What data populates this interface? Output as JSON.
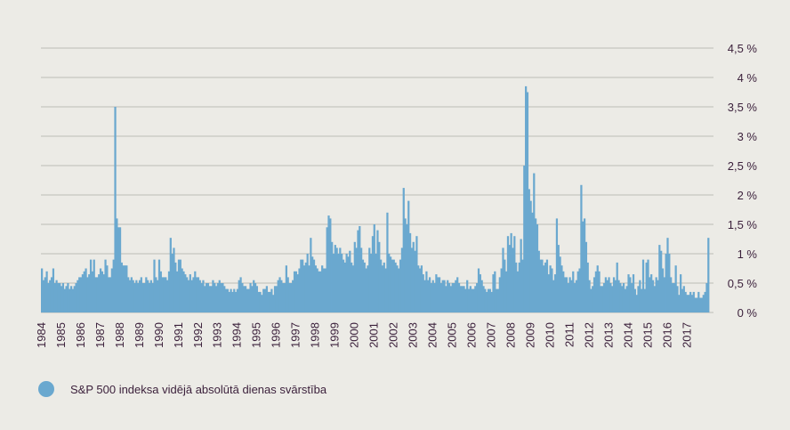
{
  "chart_data": {
    "type": "bar",
    "color": "#6aa8cf",
    "legend": "S&P 500 indeksa vidējā absolūtā dienas svārstība",
    "ylim": [
      0,
      4.5
    ],
    "yticks": [
      {
        "value": 0,
        "label": "0 %"
      },
      {
        "value": 0.5,
        "label": "0,5 %"
      },
      {
        "value": 1,
        "label": "1 %"
      },
      {
        "value": 1.5,
        "label": "1,5 %"
      },
      {
        "value": 2,
        "label": "2 %"
      },
      {
        "value": 2.5,
        "label": "2,5 %"
      },
      {
        "value": 3,
        "label": "3 %"
      },
      {
        "value": 3.5,
        "label": "3,5 %"
      },
      {
        "value": 4,
        "label": "4 %"
      },
      {
        "value": 4.5,
        "label": "4,5 %"
      }
    ],
    "grid": true,
    "categories": [
      "1984",
      null,
      null,
      null,
      null,
      null,
      null,
      null,
      null,
      null,
      null,
      null,
      "1985",
      null,
      null,
      null,
      null,
      null,
      null,
      null,
      null,
      null,
      null,
      null,
      "1986",
      null,
      null,
      null,
      null,
      null,
      null,
      null,
      null,
      null,
      null,
      null,
      "1987",
      null,
      null,
      null,
      null,
      null,
      null,
      null,
      null,
      null,
      null,
      null,
      "1988",
      null,
      null,
      null,
      null,
      null,
      null,
      null,
      null,
      null,
      null,
      null,
      "1989",
      null,
      null,
      null,
      null,
      null,
      null,
      null,
      null,
      null,
      null,
      null,
      "1990",
      null,
      null,
      null,
      null,
      null,
      null,
      null,
      null,
      null,
      null,
      null,
      "1991",
      null,
      null,
      null,
      null,
      null,
      null,
      null,
      null,
      null,
      null,
      null,
      "1992",
      null,
      null,
      null,
      null,
      null,
      null,
      null,
      null,
      null,
      null,
      null,
      "1993",
      null,
      null,
      null,
      null,
      null,
      null,
      null,
      null,
      null,
      null,
      null,
      "1994",
      null,
      null,
      null,
      null,
      null,
      null,
      null,
      null,
      null,
      null,
      null,
      "1995",
      null,
      null,
      null,
      null,
      null,
      null,
      null,
      null,
      null,
      null,
      null,
      "1996",
      null,
      null,
      null,
      null,
      null,
      null,
      null,
      null,
      null,
      null,
      null,
      "1997",
      null,
      null,
      null,
      null,
      null,
      null,
      null,
      null,
      null,
      null,
      null,
      "1998",
      null,
      null,
      null,
      null,
      null,
      null,
      null,
      null,
      null,
      null,
      null,
      "1999",
      null,
      null,
      null,
      null,
      null,
      null,
      null,
      null,
      null,
      null,
      null,
      "2000",
      null,
      null,
      null,
      null,
      null,
      null,
      null,
      null,
      null,
      null,
      null,
      "2001",
      null,
      null,
      null,
      null,
      null,
      null,
      null,
      null,
      null,
      null,
      null,
      "2002",
      null,
      null,
      null,
      null,
      null,
      null,
      null,
      null,
      null,
      null,
      null,
      "2003",
      null,
      null,
      null,
      null,
      null,
      null,
      null,
      null,
      null,
      null,
      null,
      "2004",
      null,
      null,
      null,
      null,
      null,
      null,
      null,
      null,
      null,
      null,
      null,
      "2005",
      null,
      null,
      null,
      null,
      null,
      null,
      null,
      null,
      null,
      null,
      null,
      "2006",
      null,
      null,
      null,
      null,
      null,
      null,
      null,
      null,
      null,
      null,
      null,
      "2007",
      null,
      null,
      null,
      null,
      null,
      null,
      null,
      null,
      null,
      null,
      null,
      "2008",
      null,
      null,
      null,
      null,
      null,
      null,
      null,
      null,
      null,
      null,
      null,
      "2009",
      null,
      null,
      null,
      null,
      null,
      null,
      null,
      null,
      null,
      null,
      null,
      "2010",
      null,
      null,
      null,
      null,
      null,
      null,
      null,
      null,
      null,
      null,
      null,
      "2011",
      null,
      null,
      null,
      null,
      null,
      null,
      null,
      null,
      null,
      null,
      null,
      "2012",
      null,
      null,
      null,
      null,
      null,
      null,
      null,
      null,
      null,
      null,
      null,
      "2013",
      null,
      null,
      null,
      null,
      null,
      null,
      null,
      null,
      null,
      null,
      null,
      "2014",
      null,
      null,
      null,
      null,
      null,
      null,
      null,
      null,
      null,
      null,
      null,
      "2015",
      null,
      null,
      null,
      null,
      null,
      null,
      null,
      null,
      null,
      null,
      null,
      "2016",
      null,
      null,
      null,
      null,
      null,
      null,
      null,
      null,
      null,
      null,
      null,
      "2017",
      null,
      null,
      null,
      null,
      null,
      null,
      null,
      null,
      null,
      null,
      null,
      null,
      null
    ],
    "values": [
      0.75,
      0.55,
      0.6,
      0.7,
      0.5,
      0.55,
      0.6,
      0.75,
      0.5,
      0.55,
      0.5,
      0.5,
      0.45,
      0.5,
      0.4,
      0.45,
      0.5,
      0.4,
      0.45,
      0.4,
      0.45,
      0.5,
      0.55,
      0.6,
      0.6,
      0.65,
      0.7,
      0.75,
      0.6,
      0.65,
      0.9,
      0.7,
      0.9,
      0.6,
      0.6,
      0.65,
      0.75,
      0.7,
      0.65,
      0.9,
      0.8,
      0.6,
      0.6,
      0.75,
      0.9,
      3.5,
      1.6,
      1.45,
      1.45,
      0.85,
      0.8,
      0.8,
      0.8,
      0.6,
      0.55,
      0.6,
      0.55,
      0.5,
      0.55,
      0.5,
      0.55,
      0.6,
      0.5,
      0.5,
      0.6,
      0.55,
      0.5,
      0.55,
      0.5,
      0.9,
      0.6,
      0.55,
      0.9,
      0.7,
      0.6,
      0.6,
      0.6,
      0.55,
      0.7,
      1.27,
      1.0,
      1.1,
      0.85,
      0.7,
      0.9,
      0.9,
      0.75,
      0.7,
      0.65,
      0.6,
      0.55,
      0.65,
      0.55,
      0.6,
      0.7,
      0.6,
      0.6,
      0.55,
      0.5,
      0.55,
      0.45,
      0.5,
      0.5,
      0.45,
      0.45,
      0.55,
      0.5,
      0.45,
      0.5,
      0.55,
      0.5,
      0.5,
      0.45,
      0.4,
      0.4,
      0.35,
      0.4,
      0.35,
      0.4,
      0.35,
      0.4,
      0.55,
      0.6,
      0.5,
      0.45,
      0.45,
      0.4,
      0.4,
      0.5,
      0.45,
      0.55,
      0.5,
      0.45,
      0.35,
      0.35,
      0.3,
      0.4,
      0.4,
      0.45,
      0.35,
      0.35,
      0.4,
      0.3,
      0.45,
      0.45,
      0.55,
      0.6,
      0.55,
      0.5,
      0.5,
      0.8,
      0.6,
      0.5,
      0.5,
      0.55,
      0.7,
      0.7,
      0.65,
      0.75,
      0.9,
      0.9,
      0.8,
      0.85,
      1.0,
      0.8,
      1.27,
      0.95,
      0.9,
      0.8,
      0.75,
      0.7,
      0.7,
      0.8,
      0.75,
      0.75,
      1.45,
      1.65,
      1.6,
      1.2,
      1.0,
      1.15,
      1.1,
      1.0,
      1.1,
      1.0,
      0.9,
      0.85,
      1.0,
      0.95,
      1.05,
      0.85,
      0.8,
      1.2,
      1.1,
      1.4,
      1.47,
      1.1,
      0.9,
      0.85,
      0.75,
      0.8,
      1.1,
      1.0,
      1.3,
      1.5,
      1.0,
      1.4,
      1.2,
      0.9,
      0.8,
      0.85,
      0.75,
      1.7,
      1.0,
      0.95,
      0.9,
      0.9,
      0.85,
      0.8,
      0.75,
      0.9,
      1.1,
      2.12,
      1.6,
      1.5,
      1.9,
      1.35,
      1.1,
      1.2,
      1.05,
      1.3,
      0.8,
      0.75,
      0.8,
      0.65,
      0.55,
      0.7,
      0.55,
      0.6,
      0.5,
      0.55,
      0.5,
      0.65,
      0.6,
      0.6,
      0.5,
      0.55,
      0.55,
      0.45,
      0.55,
      0.5,
      0.45,
      0.5,
      0.5,
      0.55,
      0.6,
      0.5,
      0.45,
      0.45,
      0.45,
      0.4,
      0.55,
      0.4,
      0.45,
      0.4,
      0.4,
      0.45,
      0.5,
      0.75,
      0.65,
      0.55,
      0.45,
      0.4,
      0.35,
      0.4,
      0.4,
      0.35,
      0.65,
      0.7,
      0.4,
      0.4,
      0.6,
      0.75,
      1.1,
      0.9,
      0.7,
      1.3,
      1.15,
      1.35,
      1.1,
      1.3,
      0.85,
      0.7,
      0.85,
      1.25,
      0.9,
      2.5,
      3.85,
      3.75,
      2.1,
      1.9,
      1.7,
      2.37,
      1.6,
      1.5,
      1.05,
      0.9,
      0.9,
      0.8,
      0.85,
      0.9,
      0.65,
      0.8,
      0.75,
      0.55,
      0.65,
      1.6,
      1.15,
      0.95,
      0.8,
      0.7,
      0.6,
      0.6,
      0.5,
      0.6,
      0.55,
      0.7,
      0.5,
      0.55,
      0.7,
      0.75,
      2.17,
      1.55,
      1.6,
      1.2,
      0.85,
      0.55,
      0.4,
      0.45,
      0.6,
      0.7,
      0.8,
      0.7,
      0.45,
      0.45,
      0.5,
      0.6,
      0.55,
      0.6,
      0.5,
      0.45,
      0.6,
      0.55,
      0.85,
      0.55,
      0.5,
      0.45,
      0.5,
      0.4,
      0.45,
      0.65,
      0.6,
      0.5,
      0.65,
      0.4,
      0.3,
      0.45,
      0.55,
      0.4,
      0.9,
      0.4,
      0.85,
      0.9,
      0.6,
      0.65,
      0.55,
      0.45,
      0.6,
      0.55,
      1.15,
      1.05,
      0.75,
      0.6,
      1.0,
      1.27,
      1.0,
      0.6,
      0.5,
      0.5,
      0.8,
      0.45,
      0.3,
      0.65,
      0.4,
      0.45,
      0.35,
      0.3,
      0.3,
      0.35,
      0.3,
      0.35,
      0.25,
      0.25,
      0.35,
      0.25,
      0.25,
      0.3,
      0.35,
      0.5,
      1.27
    ]
  }
}
